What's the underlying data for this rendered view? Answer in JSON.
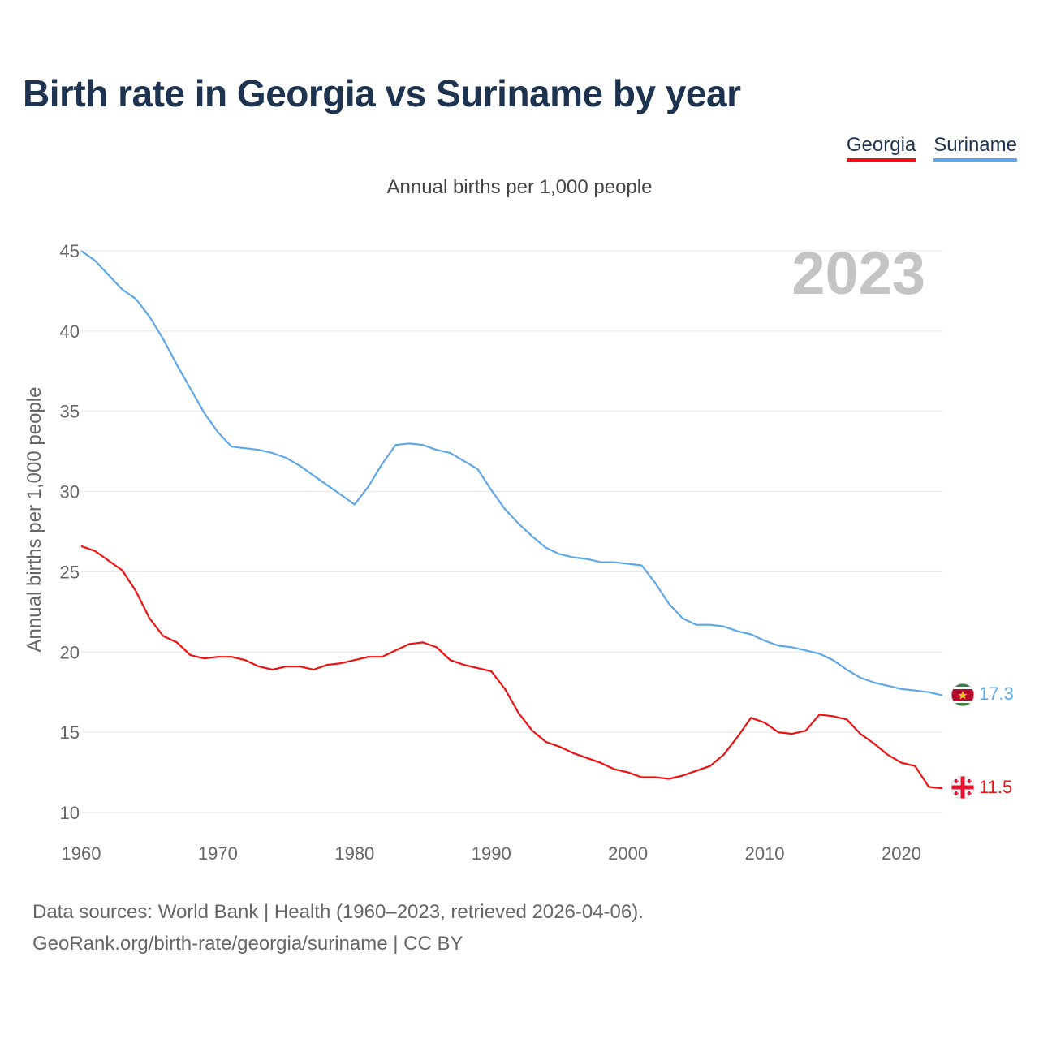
{
  "title": "Birth rate in Georgia vs Suriname by year",
  "subtitle": "Annual births per 1,000 people",
  "legend": [
    {
      "name": "Georgia",
      "color": "#ee1111"
    },
    {
      "name": "Suriname",
      "color": "#5da7e8"
    }
  ],
  "year_watermark": "2023",
  "footer": {
    "line1": "Data sources: World Bank | Health (1960–2023, retrieved 2026-04-06).",
    "line2": "GeoRank.org/birth-rate/georgia/suriname | CC BY"
  },
  "flags": [
    {
      "series": "Suriname",
      "icon": "suriname-flag-icon"
    },
    {
      "series": "Georgia",
      "icon": "georgia-flag-icon"
    }
  ],
  "chart_data": {
    "type": "line",
    "title": "Birth rate in Georgia vs Suriname by year",
    "ylabel": "Annual births per 1,000 people",
    "xlabel": "",
    "xlim": [
      1960,
      2023
    ],
    "ylim": [
      10,
      45
    ],
    "x_ticks": [
      1960,
      1970,
      1980,
      1990,
      2000,
      2010,
      2020
    ],
    "y_ticks": [
      10,
      15,
      20,
      25,
      30,
      35,
      40,
      45
    ],
    "grid": true,
    "x": [
      1960,
      1961,
      1962,
      1963,
      1964,
      1965,
      1966,
      1967,
      1968,
      1969,
      1970,
      1971,
      1972,
      1973,
      1974,
      1975,
      1976,
      1977,
      1978,
      1979,
      1980,
      1981,
      1982,
      1983,
      1984,
      1985,
      1986,
      1987,
      1988,
      1989,
      1990,
      1991,
      1992,
      1993,
      1994,
      1995,
      1996,
      1997,
      1998,
      1999,
      2000,
      2001,
      2002,
      2003,
      2004,
      2005,
      2006,
      2007,
      2008,
      2009,
      2010,
      2011,
      2012,
      2013,
      2014,
      2015,
      2016,
      2017,
      2018,
      2019,
      2020,
      2021,
      2022,
      2023
    ],
    "series": [
      {
        "name": "Georgia",
        "color": "#ee1111",
        "end_label": "11.5",
        "values": [
          26.6,
          26.3,
          25.7,
          25.1,
          23.8,
          22.1,
          21.0,
          20.6,
          19.8,
          19.6,
          19.7,
          19.7,
          19.5,
          19.1,
          18.9,
          19.1,
          19.1,
          18.9,
          19.2,
          19.3,
          19.5,
          19.7,
          19.7,
          20.1,
          20.5,
          20.6,
          20.3,
          19.5,
          19.2,
          19.0,
          18.8,
          17.7,
          16.2,
          15.1,
          14.4,
          14.1,
          13.7,
          13.4,
          13.1,
          12.7,
          12.5,
          12.2,
          12.2,
          12.1,
          12.3,
          12.6,
          12.9,
          13.6,
          14.7,
          15.9,
          15.6,
          15.0,
          14.9,
          15.1,
          16.1,
          16.0,
          15.8,
          14.9,
          14.3,
          13.6,
          13.1,
          12.9,
          11.6,
          11.5
        ]
      },
      {
        "name": "Suriname",
        "color": "#5da7e8",
        "end_label": "17.3",
        "values": [
          45.0,
          44.4,
          43.5,
          42.6,
          42.0,
          40.9,
          39.5,
          37.9,
          36.4,
          34.9,
          33.7,
          32.8,
          32.7,
          32.6,
          32.4,
          32.1,
          31.6,
          31.0,
          30.4,
          29.8,
          29.2,
          30.3,
          31.7,
          32.9,
          33.0,
          32.9,
          32.6,
          32.4,
          31.9,
          31.4,
          30.1,
          28.9,
          28.0,
          27.2,
          26.5,
          26.1,
          25.9,
          25.8,
          25.6,
          25.6,
          25.5,
          25.4,
          24.3,
          23.0,
          22.1,
          21.7,
          21.7,
          21.6,
          21.3,
          21.1,
          20.7,
          20.4,
          20.3,
          20.1,
          19.9,
          19.5,
          18.9,
          18.4,
          18.1,
          17.9,
          17.7,
          17.6,
          17.5,
          17.3
        ]
      }
    ]
  }
}
